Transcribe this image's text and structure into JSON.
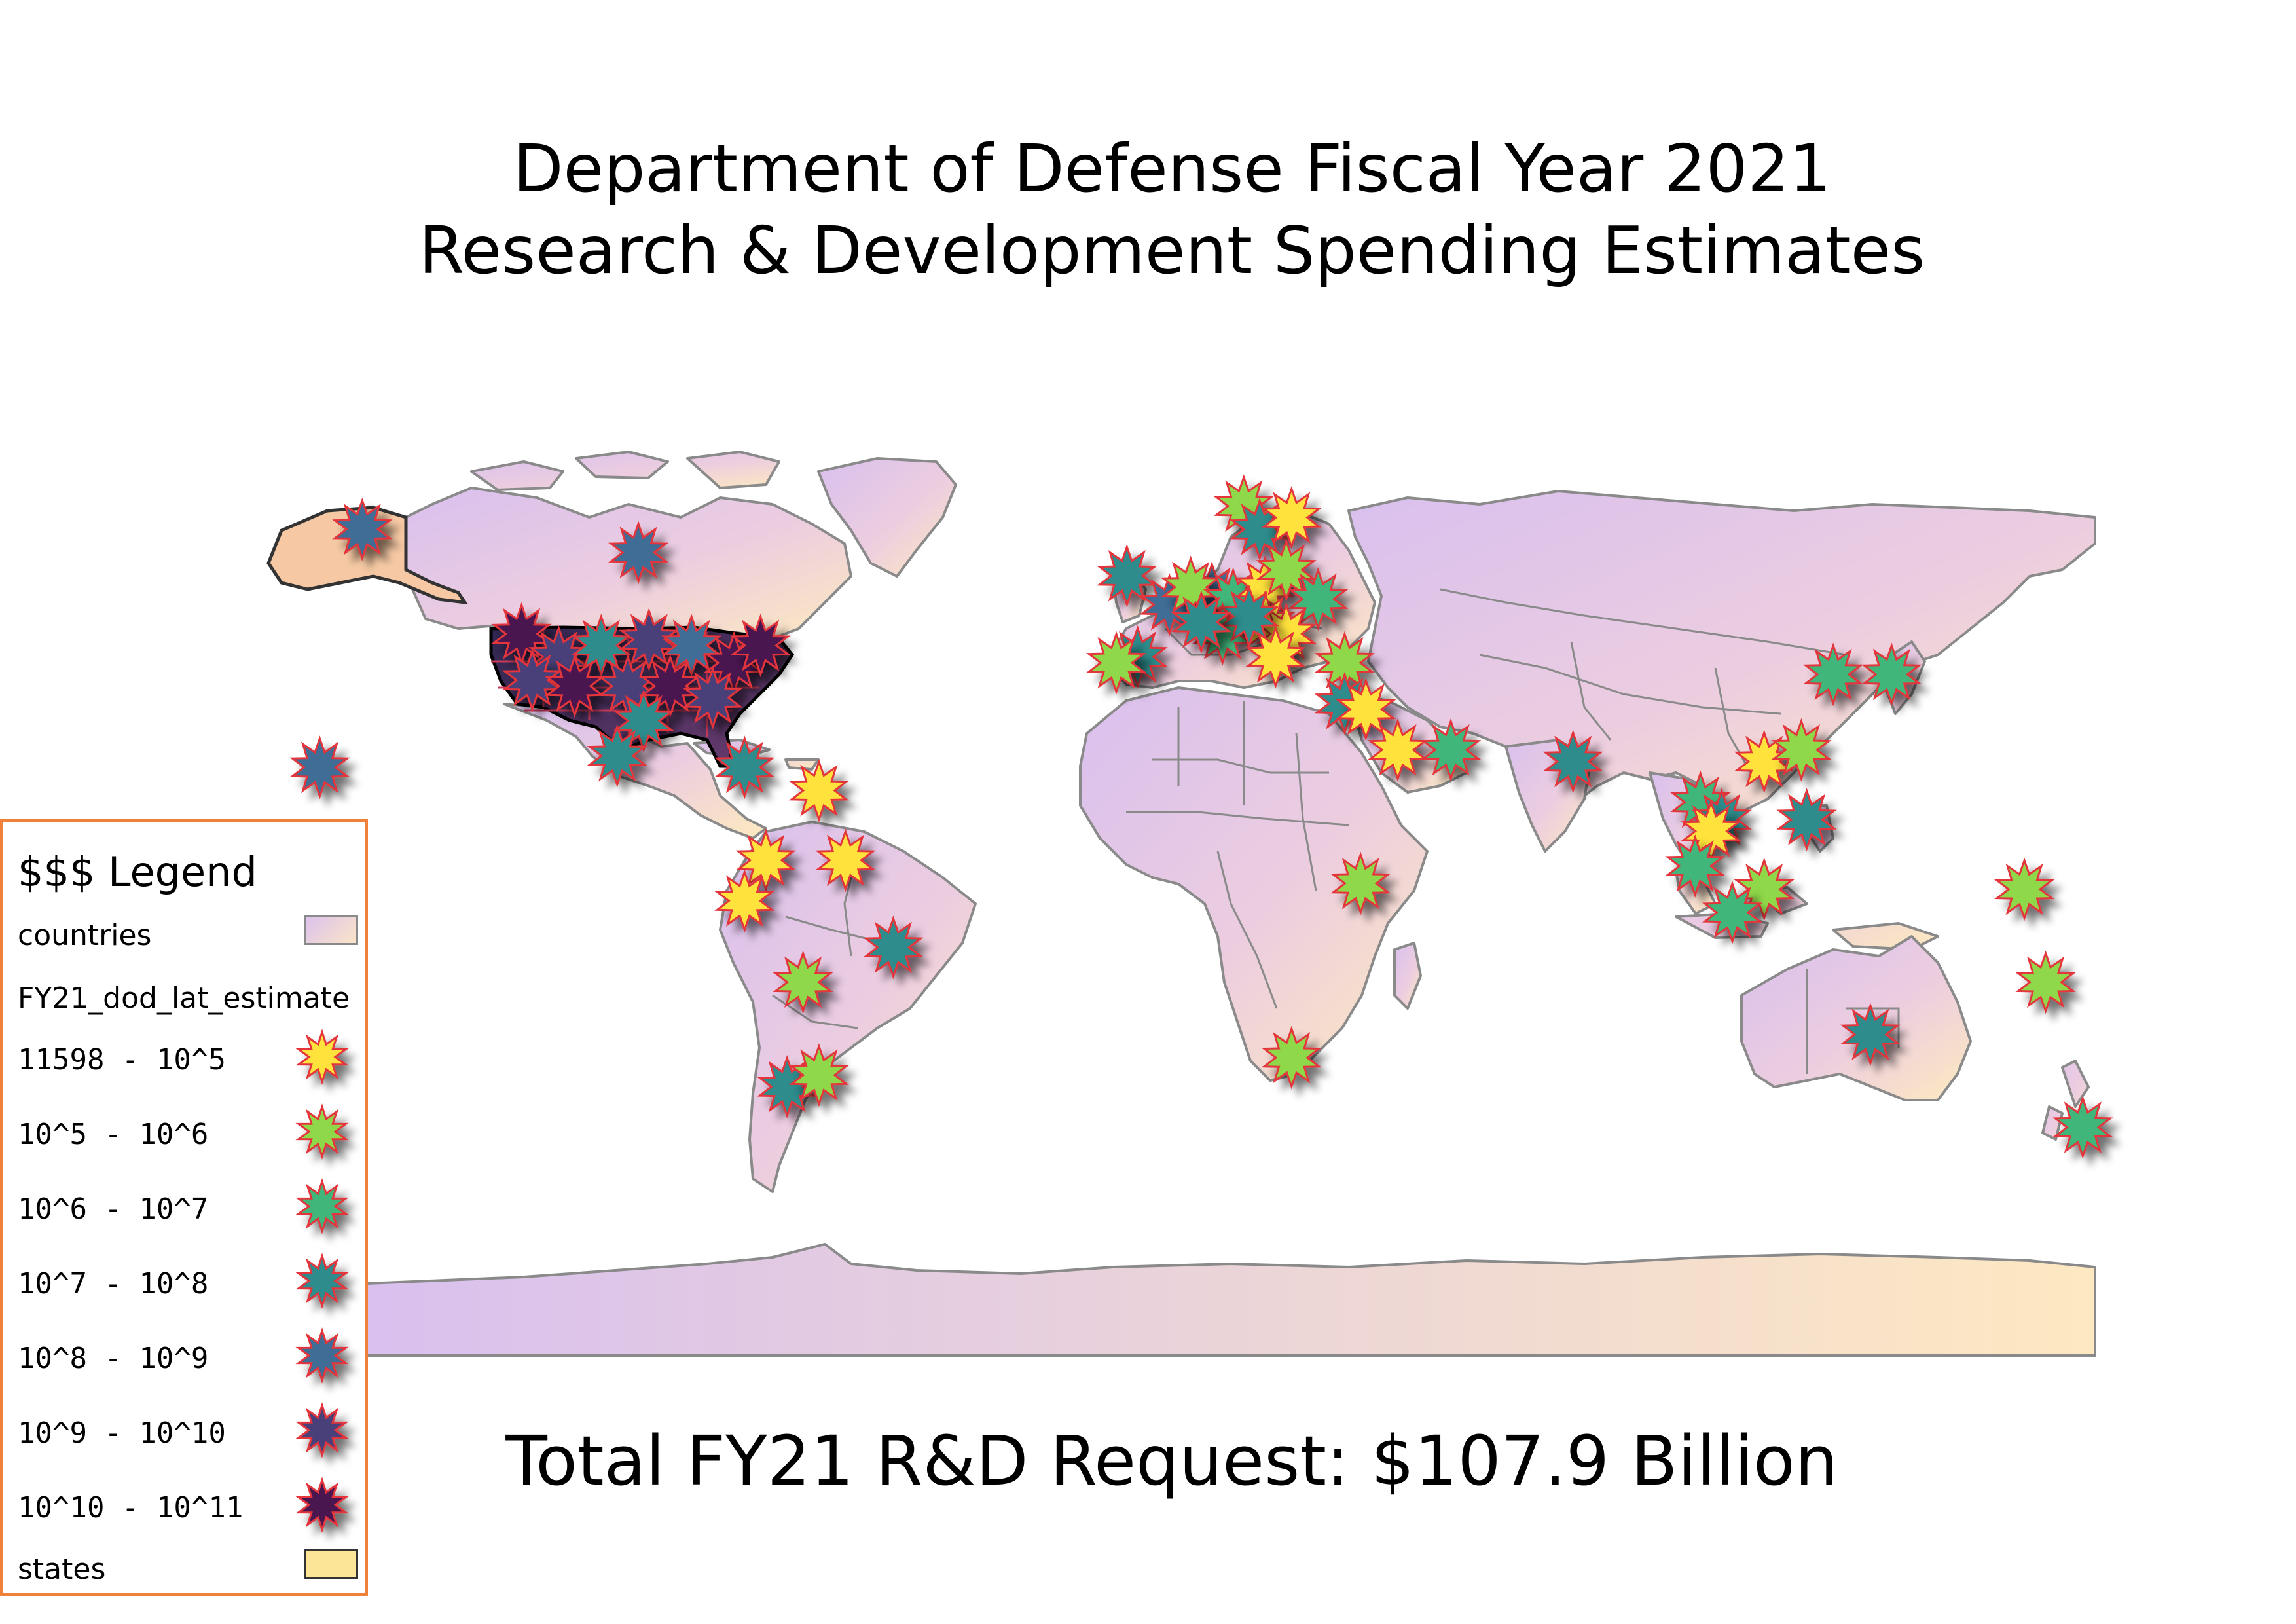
{
  "title": {
    "line1": "Department of Defense Fiscal Year 2021",
    "line2": "Research & Development Spending Estimates"
  },
  "subtitle": "Total FY21 R&D Request: $107.9 Billion",
  "legend": {
    "title": "$$$ Legend",
    "countries_label": "countries",
    "field_label": "FY21_dod_lat_estimate",
    "classes": [
      {
        "label": "11598 - 10^5",
        "color": "#ffe23a"
      },
      {
        "label": "10^5 - 10^6",
        "color": "#8fd84a"
      },
      {
        "label": "10^6 - 10^7",
        "color": "#3fb67a"
      },
      {
        "label": "10^7 - 10^8",
        "color": "#2e8c8c"
      },
      {
        "label": "10^8 - 10^9",
        "color": "#3f6d95"
      },
      {
        "label": "10^9 - 10^10",
        "color": "#4a3f7a"
      },
      {
        "label": "10^10 - 10^11",
        "color": "#4a1850"
      }
    ],
    "states_label": "states"
  },
  "colors": {
    "country_fill_a": "#dcc2ec",
    "country_fill_b": "#fbe4c8",
    "states_fill": "#fde598",
    "usa_fill": "#3c2a5a",
    "star_stroke": "#e3343a",
    "legend_border": "#f0813a",
    "border": "#8a8a8a"
  },
  "markers": [
    {
      "lon": -150,
      "lat": 62,
      "cls": 4
    },
    {
      "lon": -98,
      "lat": 58,
      "cls": 4
    },
    {
      "lon": -158,
      "lat": 21,
      "cls": 4
    },
    {
      "lon": -120,
      "lat": 44,
      "cls": 6
    },
    {
      "lon": -113,
      "lat": 40,
      "cls": 5
    },
    {
      "lon": -105,
      "lat": 42,
      "cls": 3
    },
    {
      "lon": -96,
      "lat": 43,
      "cls": 5
    },
    {
      "lon": -88,
      "lat": 42,
      "cls": 4
    },
    {
      "lon": -80,
      "lat": 39,
      "cls": 6
    },
    {
      "lon": -75,
      "lat": 42,
      "cls": 6
    },
    {
      "lon": -118,
      "lat": 36,
      "cls": 5
    },
    {
      "lon": -110,
      "lat": 35,
      "cls": 6
    },
    {
      "lon": -100,
      "lat": 35,
      "cls": 5
    },
    {
      "lon": -92,
      "lat": 35,
      "cls": 6
    },
    {
      "lon": -84,
      "lat": 33,
      "cls": 5
    },
    {
      "lon": -97,
      "lat": 29,
      "cls": 3
    },
    {
      "lon": -102,
      "lat": 23,
      "cls": 3
    },
    {
      "lon": -78,
      "lat": 21,
      "cls": 3
    },
    {
      "lon": -64,
      "lat": 17,
      "cls": 0
    },
    {
      "lon": -74,
      "lat": 5,
      "cls": 0
    },
    {
      "lon": -59,
      "lat": 5,
      "cls": 0
    },
    {
      "lon": -78,
      "lat": -2,
      "cls": 0
    },
    {
      "lon": -50,
      "lat": -10,
      "cls": 3
    },
    {
      "lon": -67,
      "lat": -16,
      "cls": 1
    },
    {
      "lon": -70,
      "lat": -34,
      "cls": 3
    },
    {
      "lon": -64,
      "lat": -32,
      "cls": 1
    },
    {
      "lon": 16,
      "lat": 66,
      "cls": 1
    },
    {
      "lon": 19,
      "lat": 62,
      "cls": 3
    },
    {
      "lon": 25,
      "lat": 64,
      "cls": 0
    },
    {
      "lon": -6,
      "lat": 54,
      "cls": 3
    },
    {
      "lon": 2,
      "lat": 49,
      "cls": 4
    },
    {
      "lon": 10,
      "lat": 51,
      "cls": 4
    },
    {
      "lon": 6,
      "lat": 52,
      "cls": 1
    },
    {
      "lon": 14,
      "lat": 50,
      "cls": 2
    },
    {
      "lon": 20,
      "lat": 52,
      "cls": 0
    },
    {
      "lon": 24,
      "lat": 55,
      "cls": 1
    },
    {
      "lon": 30,
      "lat": 50,
      "cls": 2
    },
    {
      "lon": 12,
      "lat": 44,
      "cls": 2
    },
    {
      "lon": 20,
      "lat": 46,
      "cls": 0
    },
    {
      "lon": 24,
      "lat": 44,
      "cls": 0
    },
    {
      "lon": 17,
      "lat": 47,
      "cls": 3
    },
    {
      "lon": 8,
      "lat": 46,
      "cls": 3
    },
    {
      "lon": 22,
      "lat": 40,
      "cls": 0
    },
    {
      "lon": 35,
      "lat": 39,
      "cls": 1
    },
    {
      "lon": -4,
      "lat": 40,
      "cls": 3
    },
    {
      "lon": -8,
      "lat": 39,
      "cls": 1
    },
    {
      "lon": 35,
      "lat": 32,
      "cls": 3
    },
    {
      "lon": 39,
      "lat": 31,
      "cls": 0
    },
    {
      "lon": 45,
      "lat": 24,
      "cls": 0
    },
    {
      "lon": 55,
      "lat": 24,
      "cls": 2
    },
    {
      "lon": 78,
      "lat": 22,
      "cls": 3
    },
    {
      "lon": 38,
      "lat": 1,
      "cls": 1
    },
    {
      "lon": 25,
      "lat": -29,
      "cls": 1
    },
    {
      "lon": 127,
      "lat": 37,
      "cls": 2
    },
    {
      "lon": 138,
      "lat": 37,
      "cls": 2
    },
    {
      "lon": 114,
      "lat": 22,
      "cls": 0
    },
    {
      "lon": 121,
      "lat": 24,
      "cls": 1
    },
    {
      "lon": 102,
      "lat": 15,
      "cls": 2
    },
    {
      "lon": 106,
      "lat": 12,
      "cls": 3
    },
    {
      "lon": 104,
      "lat": 10,
      "cls": 0
    },
    {
      "lon": 122,
      "lat": 12,
      "cls": 3
    },
    {
      "lon": 101,
      "lat": 4,
      "cls": 2
    },
    {
      "lon": 114,
      "lat": 0,
      "cls": 1
    },
    {
      "lon": 108,
      "lat": -4,
      "cls": 2
    },
    {
      "lon": 134,
      "lat": -25,
      "cls": 3
    },
    {
      "lon": 167,
      "lat": -16,
      "cls": 1
    },
    {
      "lon": 174,
      "lat": -41,
      "cls": 2
    },
    {
      "lon": 163,
      "lat": 0,
      "cls": 1
    }
  ]
}
